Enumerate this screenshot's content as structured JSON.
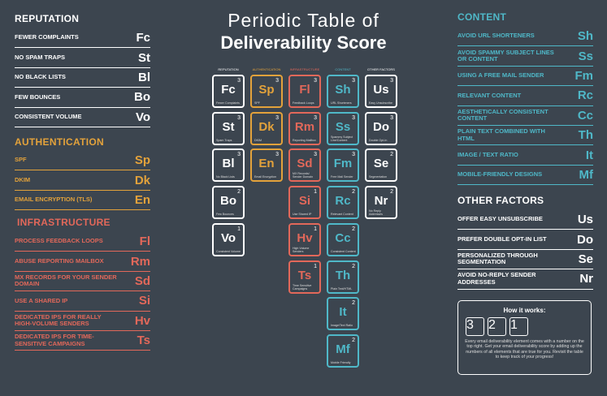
{
  "title": {
    "line1": "Periodic Table of",
    "line2": "Deliverability Score"
  },
  "groups": [
    {
      "name": "REPUTATION",
      "color": "#ffffff",
      "elements": [
        {
          "label": "FEWER COMPLAINTS",
          "symbol": "Fc",
          "name": "Fewer Complaints",
          "score": 3
        },
        {
          "label": "NO SPAM TRAPS",
          "symbol": "St",
          "name": "Spam Traps",
          "score": 3
        },
        {
          "label": "NO BLACK LISTS",
          "symbol": "Bl",
          "name": "No Black Lists",
          "score": 3
        },
        {
          "label": "FEW BOUNCES",
          "symbol": "Bo",
          "name": "Few Bounces",
          "score": 2
        },
        {
          "label": "CONSISTENT VOLUME",
          "symbol": "Vo",
          "name": "Consistent Volume",
          "score": 1
        }
      ]
    },
    {
      "name": "AUTHENTICATION",
      "color": "#e3a23b",
      "elements": [
        {
          "label": "SPF",
          "symbol": "Sp",
          "name": "SPF",
          "score": 3
        },
        {
          "label": "DKIM",
          "symbol": "Dk",
          "name": "DKIM",
          "score": 3
        },
        {
          "label": "EMAIL ENCRYPTION (TLS)",
          "symbol": "En",
          "name": "Email Encryption",
          "score": 3
        }
      ]
    },
    {
      "name": "INFRASTRUCTURE",
      "color": "#e2685a",
      "elements": [
        {
          "label": "PROCESS FEEDBACK LOOPS",
          "symbol": "Fl",
          "name": "Feedback Loops",
          "score": 3
        },
        {
          "label": "ABUSE REPORTING MAILBOX",
          "symbol": "Rm",
          "name": "Reporting Mailbox",
          "score": 3
        },
        {
          "label": "MX RECORDS FOR YOUR SENDER DOMAIN",
          "symbol": "Sd",
          "name": "MX Records/ Sender Domain",
          "score": 3
        },
        {
          "label": "USE A SHARED IP",
          "symbol": "Si",
          "name": "Use Shared IP",
          "score": 1
        },
        {
          "label": "DEDICATED IPS FOR REALLY HIGH-VOLUME SENDERS",
          "symbol": "Hv",
          "name": "High Volume Senders",
          "score": 1
        },
        {
          "label": "DEDICATED IPS FOR TIME-SENSITIVE CAMPAIGNS",
          "symbol": "Ts",
          "name": "Time Sensitive Campaigns",
          "score": 1
        }
      ]
    },
    {
      "name": "CONTENT",
      "color": "#4fb8c8",
      "elements": [
        {
          "label": "AVOID URL SHORTENERS",
          "symbol": "Sh",
          "name": "URL Shorteners",
          "score": 3
        },
        {
          "label": "AVOID SPAMMY SUBJECT LINES OR CONTENT",
          "symbol": "Ss",
          "name": "Spammy Subject Line/Content",
          "score": 3
        },
        {
          "label": "USING A FREE MAIL SENDER",
          "symbol": "Fm",
          "name": "Free Mail Sender",
          "score": 3
        },
        {
          "label": "RELEVANT CONTENT",
          "symbol": "Rc",
          "name": "Relevant Content",
          "score": 2
        },
        {
          "label": "AESTHETICALLY CONSISTENT CONTENT",
          "symbol": "Cc",
          "name": "Consistent Content",
          "score": 2
        },
        {
          "label": "PLAIN TEXT COMBINED WITH HTML",
          "symbol": "Th",
          "name": "Plain Text/HTML",
          "score": 2
        },
        {
          "label": "IMAGE / TEXT RATIO",
          "symbol": "It",
          "name": "Image/Text Ratio",
          "score": 2
        },
        {
          "label": "MOBILE-FRIENDLY DESIGNS",
          "symbol": "Mf",
          "name": "Mobile Friendly",
          "score": 2
        }
      ]
    },
    {
      "name": "OTHER FACTORS",
      "color": "#ffffff",
      "elements": [
        {
          "label": "OFFER EASY UNSUBSCRIBE",
          "symbol": "Us",
          "name": "Easy Unsubscribe",
          "score": 3
        },
        {
          "label": "PREFER DOUBLE OPT-IN LIST",
          "symbol": "Do",
          "name": "Double Opt-In",
          "score": 3
        },
        {
          "label": "PERSONALIZED THROUGH SEGMENTATION",
          "symbol": "Se",
          "name": "Segmentation",
          "score": 2
        },
        {
          "label": "AVOID NO-REPLY SENDER ADDRESSES",
          "symbol": "Nr",
          "name": "No Reply Addresses",
          "score": 2
        }
      ]
    }
  ],
  "how_it_works": {
    "title": "How it works:",
    "scores": [
      3,
      2,
      1
    ],
    "text": "Every email deliverability element comes with a number on the top right. Get your email deliverability score by adding up the numbers of all elements that are true for you. Revisit the table to keep track of your progress!"
  }
}
